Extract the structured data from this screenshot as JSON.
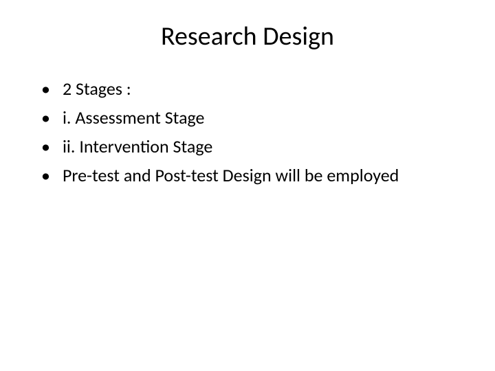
{
  "slide": {
    "title": "Research Design",
    "title_fontsize": 38,
    "background_color": "#ffffff",
    "text_color": "#000000",
    "body_fontsize": 26,
    "bullets": [
      {
        "marker": "•",
        "text": "2 Stages :"
      },
      {
        "marker": "•",
        "text": "i. Assessment Stage"
      },
      {
        "marker": "•",
        "text": "ii. Intervention Stage"
      },
      {
        "marker": "•",
        "text": "Pre-test and Post-test Design will be employed"
      }
    ]
  }
}
